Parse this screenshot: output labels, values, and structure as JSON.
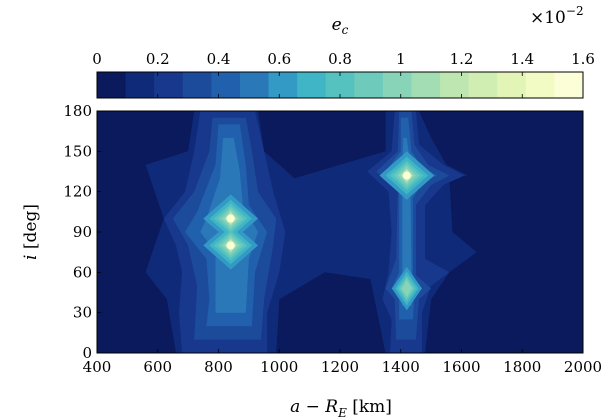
{
  "chart_data": {
    "type": "heatmap",
    "title": "",
    "xlabel": "a − R_E [km]",
    "ylabel": "i [deg]",
    "xlim": [
      400,
      2000
    ],
    "ylim": [
      0,
      180
    ],
    "x_ticks": [
      "400",
      "600",
      "800",
      "1000",
      "1200",
      "1400",
      "1600",
      "1800",
      "2000"
    ],
    "y_ticks": [
      "0",
      "30",
      "60",
      "90",
      "120",
      "150",
      "180"
    ],
    "colorbar": {
      "label": "e_c",
      "multiplier": "×10",
      "exponent": "−2",
      "range": [
        0,
        1.6
      ],
      "ticks": [
        "0",
        "0.2",
        "0.4",
        "0.6",
        "0.8",
        "1",
        "1.2",
        "1.4",
        "1.6"
      ],
      "levels": 20,
      "colors": [
        "#0a1a5c",
        "#102a7a",
        "#17388c",
        "#1d4b9c",
        "#2060ac",
        "#2a78b8",
        "#339ac5",
        "#3fb5c6",
        "#55c2c0",
        "#6ecbbc",
        "#88d4b8",
        "#a3ddb4",
        "#bde6b1",
        "#d1eeb2",
        "#e3f5b6",
        "#f2fbc4",
        "#fbfed6"
      ]
    },
    "peaks": [
      {
        "x": 840,
        "y": 100,
        "value": 1.0
      },
      {
        "x": 840,
        "y": 80,
        "value": 1.05
      },
      {
        "x": 1420,
        "y": 132,
        "value": 1.0
      },
      {
        "x": 1420,
        "y": 48,
        "value": 0.55
      }
    ]
  }
}
